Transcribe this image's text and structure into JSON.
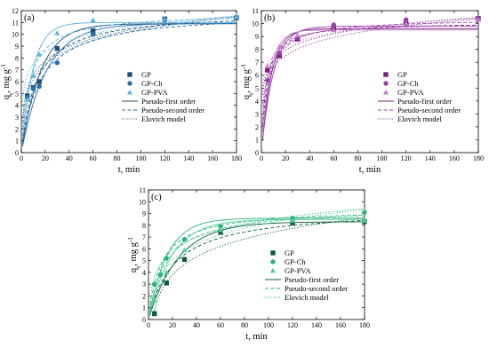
{
  "figure_texts": {
    "xlabel": "t, min",
    "ylabel_main": "q",
    "ylabel_sub": "t",
    "ylabel_rest": ", mg g",
    "ylabel_sup": "-1"
  },
  "chart_data": [
    {
      "panel": "(a)",
      "type": "scatter",
      "xlabel": "t, min",
      "ylabel": "qt, mg g-1",
      "xlim": [
        0,
        180
      ],
      "ylim": [
        0,
        12
      ],
      "xticks": [
        0,
        20,
        40,
        60,
        80,
        100,
        120,
        140,
        160,
        180
      ],
      "yticks": [
        0,
        1,
        2,
        3,
        4,
        5,
        6,
        7,
        8,
        9,
        10,
        11,
        12
      ],
      "grid": false,
      "legend_position": "center-right",
      "legend": [
        "GP",
        "GP-Ch",
        "GP-PVA",
        "Pseudo-first order",
        "Pseudo-second order",
        "Elovich model"
      ],
      "series": [
        {
          "name": "GP",
          "marker": "square",
          "color": "#1f4e79",
          "x": [
            5,
            10,
            15,
            30,
            60,
            120,
            180
          ],
          "y": [
            4.8,
            5.5,
            6.0,
            8.8,
            10.3,
            11.3,
            11.4
          ]
        },
        {
          "name": "GP-Ch",
          "marker": "circle",
          "color": "#2a6ea6",
          "x": [
            5,
            10,
            15,
            30,
            60,
            120,
            180
          ],
          "y": [
            4.7,
            5.4,
            5.6,
            7.6,
            10.0,
            11.2,
            11.4
          ]
        },
        {
          "name": "GP-PVA",
          "marker": "triangle",
          "color": "#5ab4e0",
          "x": [
            5,
            10,
            15,
            30,
            60,
            120,
            180
          ],
          "y": [
            4.5,
            6.5,
            8.3,
            10.1,
            11.2,
            11.3,
            11.5
          ]
        }
      ],
      "models": [
        {
          "series": "GP",
          "pfo": {
            "qe": 10.9,
            "k": 0.062
          },
          "pso": {
            "qe": 11.9,
            "k": 0.0068
          },
          "elovich": {
            "a": 2.64,
            "b": 1.71
          }
        },
        {
          "series": "GP-Ch",
          "pfo": {
            "qe": 10.9,
            "k": 0.048
          },
          "pso": {
            "qe": 11.9,
            "k": 0.0055
          },
          "elovich": {
            "a": 2.0,
            "b": 1.82
          }
        },
        {
          "series": "GP-PVA",
          "pfo": {
            "qe": 11.0,
            "k": 0.105
          },
          "pso": {
            "qe": 11.8,
            "k": 0.012
          },
          "elovich": {
            "a": 4.3,
            "b": 1.4
          }
        }
      ]
    },
    {
      "panel": "(b)",
      "type": "scatter",
      "xlabel": "t, min",
      "ylabel": "qt, mg g-1",
      "xlim": [
        0,
        180
      ],
      "ylim": [
        0,
        11
      ],
      "xticks": [
        0,
        20,
        40,
        60,
        80,
        100,
        120,
        140,
        160,
        180
      ],
      "yticks": [
        0,
        1,
        2,
        3,
        4,
        5,
        6,
        7,
        8,
        9,
        10,
        11
      ],
      "grid": false,
      "legend_position": "center-right",
      "legend": [
        "GP",
        "GP-Ch",
        "GP-PVA",
        "Pseudo-first order",
        "Pseudo-second order",
        "Elovich model"
      ],
      "series": [
        {
          "name": "GP",
          "marker": "square",
          "color": "#7a1f7a",
          "x": [
            5,
            15,
            30,
            60,
            120,
            180
          ],
          "y": [
            6.4,
            7.5,
            8.8,
            9.6,
            10.0,
            10.4
          ]
        },
        {
          "name": "GP-Ch",
          "marker": "circle",
          "color": "#9b3fb0",
          "x": [
            5,
            15,
            30,
            60,
            120,
            180
          ],
          "y": [
            5.6,
            7.7,
            8.9,
            9.9,
            10.3,
            10.4
          ]
        },
        {
          "name": "GP-PVA",
          "marker": "triangle",
          "color": "#c77fd0",
          "x": [
            5,
            15,
            30,
            60,
            120,
            180
          ],
          "y": [
            6.7,
            8.2,
            9.1,
            9.5,
            10.0,
            10.3
          ]
        }
      ],
      "models": [
        {
          "series": "GP",
          "pfo": {
            "qe": 9.6,
            "k": 0.12
          },
          "pso": {
            "qe": 10.1,
            "k": 0.025
          },
          "elovich": {
            "a": 4.5,
            "b": 1.15
          }
        },
        {
          "series": "GP-Ch",
          "pfo": {
            "qe": 9.8,
            "k": 0.1
          },
          "pso": {
            "qe": 10.4,
            "k": 0.018
          },
          "elovich": {
            "a": 3.6,
            "b": 1.3
          }
        },
        {
          "series": "GP-PVA",
          "pfo": {
            "qe": 9.5,
            "k": 0.14
          },
          "pso": {
            "qe": 10.0,
            "k": 0.03
          },
          "elovich": {
            "a": 5.2,
            "b": 1.0
          }
        }
      ]
    },
    {
      "panel": "(c)",
      "type": "scatter",
      "xlabel": "t, min",
      "ylabel": "qt, mg g-1",
      "xlim": [
        0,
        180
      ],
      "ylim": [
        0,
        11
      ],
      "xticks": [
        0,
        20,
        40,
        60,
        80,
        100,
        120,
        140,
        160,
        180
      ],
      "yticks": [
        0,
        1,
        2,
        3,
        4,
        5,
        6,
        7,
        8,
        9,
        10,
        11
      ],
      "grid": false,
      "legend_position": "center-right",
      "legend": [
        "GP",
        "GP-Ch",
        "GP-PVA",
        "Pseudo-first order",
        "Pseudo-second order",
        "Elovich model"
      ],
      "series": [
        {
          "name": "GP",
          "marker": "square",
          "color": "#0d5c3a",
          "x": [
            5,
            15,
            30,
            60,
            120,
            180
          ],
          "y": [
            0.5,
            3.1,
            5.1,
            7.4,
            8.2,
            8.3
          ]
        },
        {
          "name": "GP-Ch",
          "marker": "circle",
          "color": "#2bb37a",
          "x": [
            5,
            10,
            15,
            30,
            60,
            120,
            180
          ],
          "y": [
            3.0,
            3.8,
            5.2,
            6.8,
            7.9,
            8.6,
            9.1
          ]
        },
        {
          "name": "GP-PVA",
          "marker": "triangle",
          "color": "#4ecf98",
          "x": [
            5,
            15,
            30,
            60,
            120,
            180
          ],
          "y": [
            1.6,
            4.0,
            5.9,
            7.6,
            8.4,
            8.4
          ]
        }
      ],
      "models": [
        {
          "series": "GP",
          "pfo": {
            "qe": 8.3,
            "k": 0.04
          },
          "pso": {
            "qe": 9.4,
            "k": 0.005
          },
          "elovich": {
            "a": -2.8,
            "b": 2.2
          }
        },
        {
          "series": "GP-Ch",
          "pfo": {
            "qe": 8.6,
            "k": 0.065
          },
          "pso": {
            "qe": 9.4,
            "k": 0.01
          },
          "elovich": {
            "a": 1.0,
            "b": 1.62
          }
        },
        {
          "series": "GP-PVA",
          "pfo": {
            "qe": 8.5,
            "k": 0.052
          },
          "pso": {
            "qe": 9.5,
            "k": 0.0075
          },
          "elovich": {
            "a": -0.8,
            "b": 1.95
          }
        }
      ]
    }
  ]
}
